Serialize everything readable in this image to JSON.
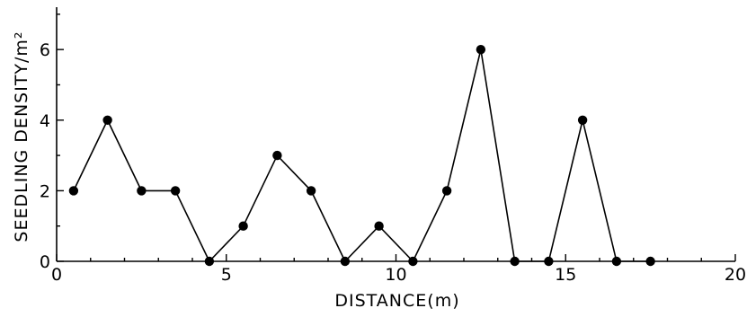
{
  "chart_data": {
    "type": "line",
    "xlabel": "DISTANCE(m)",
    "ylabel": "SEEDLING DENSITY/m²",
    "xlim": [
      0,
      20
    ],
    "ylim": [
      0,
      7.2
    ],
    "xticks": [
      0,
      5,
      10,
      15,
      20
    ],
    "yticks": [
      0,
      2,
      4,
      6
    ],
    "xtick_labels": [
      "0",
      "5",
      "10",
      "15",
      "20"
    ],
    "ytick_labels": [
      "0",
      "2",
      "4",
      "6"
    ],
    "grid": false,
    "series": [
      {
        "x": [
          0.5,
          1.5,
          2.5,
          3.5,
          4.5,
          5.5,
          6.5,
          7.5,
          8.5,
          9.5,
          10.5,
          11.5,
          12.5,
          13.5,
          14.5,
          15.5,
          16.5,
          17.5
        ],
        "values": [
          2,
          4,
          2,
          2,
          0,
          1,
          3,
          2,
          0,
          1,
          0,
          2,
          6,
          0,
          0,
          4,
          0,
          0
        ]
      }
    ]
  }
}
